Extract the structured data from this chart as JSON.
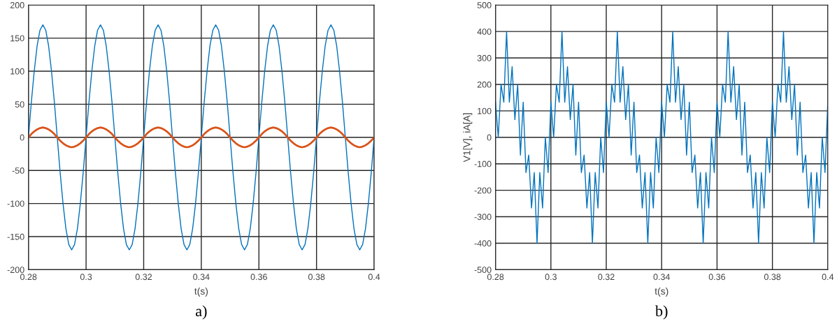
{
  "chart_data": [
    {
      "type": "line",
      "xlabel": "t(s)",
      "annotations": [
        "a)"
      ],
      "x": [
        0.28,
        0.281,
        0.282,
        0.283,
        0.284,
        0.285,
        0.286,
        0.287,
        0.288,
        0.289,
        0.29,
        0.291,
        0.292,
        0.293,
        0.294,
        0.295,
        0.296,
        0.297,
        0.298,
        0.299,
        0.3,
        0.301,
        0.302,
        0.303,
        0.304,
        0.305,
        0.306,
        0.307,
        0.308,
        0.309,
        0.31,
        0.311,
        0.312,
        0.313,
        0.314,
        0.315,
        0.316,
        0.317,
        0.318,
        0.319,
        0.32,
        0.321,
        0.322,
        0.323,
        0.324,
        0.325,
        0.326,
        0.327,
        0.328,
        0.329,
        0.33,
        0.331,
        0.332,
        0.333,
        0.334,
        0.335,
        0.336,
        0.337,
        0.338,
        0.339,
        0.34,
        0.341,
        0.342,
        0.343,
        0.344,
        0.345,
        0.346,
        0.347,
        0.348,
        0.349,
        0.35,
        0.351,
        0.352,
        0.353,
        0.354,
        0.355,
        0.356,
        0.357,
        0.358,
        0.359,
        0.36,
        0.361,
        0.362,
        0.363,
        0.364,
        0.365,
        0.366,
        0.367,
        0.368,
        0.369,
        0.37,
        0.371,
        0.372,
        0.373,
        0.374,
        0.375,
        0.376,
        0.377,
        0.378,
        0.379,
        0.38,
        0.381,
        0.382,
        0.383,
        0.384,
        0.385,
        0.386,
        0.387,
        0.388,
        0.389,
        0.39,
        0.391,
        0.392,
        0.393,
        0.394,
        0.395,
        0.396,
        0.397,
        0.398,
        0.399,
        0.4
      ],
      "series": [
        {
          "color": "#0072bd",
          "values": [
            0,
            53,
            100,
            138,
            162,
            170,
            162,
            138,
            100,
            53,
            0,
            -53,
            -100,
            -138,
            -162,
            -170,
            -162,
            -138,
            -100,
            -53,
            0,
            53,
            100,
            138,
            162,
            170,
            162,
            138,
            100,
            53,
            0,
            -53,
            -100,
            -138,
            -162,
            -170,
            -162,
            -138,
            -100,
            -53,
            0,
            53,
            100,
            138,
            162,
            170,
            162,
            138,
            100,
            53,
            0,
            -53,
            -100,
            -138,
            -162,
            -170,
            -162,
            -138,
            -100,
            -53,
            0,
            53,
            100,
            138,
            162,
            170,
            162,
            138,
            100,
            53,
            0,
            -53,
            -100,
            -138,
            -162,
            -170,
            -162,
            -138,
            -100,
            -53,
            0,
            53,
            100,
            138,
            162,
            170,
            162,
            138,
            100,
            53,
            0,
            -53,
            -100,
            -138,
            -162,
            -170,
            -162,
            -138,
            -100,
            -53,
            0,
            53,
            100,
            138,
            162,
            170,
            162,
            138,
            100,
            53,
            0,
            -53,
            -100,
            -138,
            -162,
            -170,
            -162,
            -138,
            -100,
            -53,
            0
          ]
        },
        {
          "color": "#d95319",
          "values": [
            0,
            5,
            9,
            12,
            14,
            15,
            14,
            12,
            9,
            5,
            0,
            -5,
            -9,
            -12,
            -14,
            -15,
            -14,
            -12,
            -9,
            -5,
            0,
            5,
            9,
            12,
            14,
            15,
            14,
            12,
            9,
            5,
            0,
            -5,
            -9,
            -12,
            -14,
            -15,
            -14,
            -12,
            -9,
            -5,
            0,
            5,
            9,
            12,
            14,
            15,
            14,
            12,
            9,
            5,
            0,
            -5,
            -9,
            -12,
            -14,
            -15,
            -14,
            -12,
            -9,
            -5,
            0,
            5,
            9,
            12,
            14,
            15,
            14,
            12,
            9,
            5,
            0,
            -5,
            -9,
            -12,
            -14,
            -15,
            -14,
            -12,
            -9,
            -5,
            0,
            5,
            9,
            12,
            14,
            15,
            14,
            12,
            9,
            5,
            0,
            -5,
            -9,
            -12,
            -14,
            -15,
            -14,
            -12,
            -9,
            -5,
            0,
            5,
            9,
            12,
            14,
            15,
            14,
            12,
            9,
            5,
            0,
            -5,
            -9,
            -12,
            -14,
            -15,
            -14,
            -12,
            -9,
            -5,
            0
          ]
        }
      ],
      "xlim": [
        0.28,
        0.4
      ],
      "xticks": [
        0.28,
        0.3,
        0.32,
        0.34,
        0.36,
        0.38,
        0.4
      ],
      "ylim": [
        -200,
        200
      ],
      "yticks": [
        -200,
        -150,
        -100,
        -50,
        0,
        50,
        100,
        150,
        200
      ],
      "grid": true
    },
    {
      "type": "line",
      "xlabel": "t(s)",
      "ylabel": "V1[V], iA[A]",
      "annotations": [
        "b)"
      ],
      "x": [
        0.28,
        0.281,
        0.282,
        0.283,
        0.284,
        0.285,
        0.286,
        0.287,
        0.288,
        0.289,
        0.29,
        0.291,
        0.292,
        0.293,
        0.294,
        0.295,
        0.296,
        0.297,
        0.298,
        0.299,
        0.3,
        0.301,
        0.302,
        0.303,
        0.304,
        0.305,
        0.306,
        0.307,
        0.308,
        0.309,
        0.31,
        0.311,
        0.312,
        0.313,
        0.314,
        0.315,
        0.316,
        0.317,
        0.318,
        0.319,
        0.32,
        0.321,
        0.322,
        0.323,
        0.324,
        0.325,
        0.326,
        0.327,
        0.328,
        0.329,
        0.33,
        0.331,
        0.332,
        0.333,
        0.334,
        0.335,
        0.336,
        0.337,
        0.338,
        0.339,
        0.34,
        0.341,
        0.342,
        0.343,
        0.344,
        0.345,
        0.346,
        0.347,
        0.348,
        0.349,
        0.35,
        0.351,
        0.352,
        0.353,
        0.354,
        0.355,
        0.356,
        0.357,
        0.358,
        0.359,
        0.36,
        0.361,
        0.362,
        0.363,
        0.364,
        0.365,
        0.366,
        0.367,
        0.368,
        0.369,
        0.37,
        0.371,
        0.372,
        0.373,
        0.374,
        0.375,
        0.376,
        0.377,
        0.378,
        0.379,
        0.38,
        0.381,
        0.382,
        0.383,
        0.384,
        0.385,
        0.386,
        0.387,
        0.388,
        0.389,
        0.39,
        0.391,
        0.392,
        0.393,
        0.394,
        0.395,
        0.396,
        0.397,
        0.398,
        0.399,
        0.4
      ],
      "series": [
        {
          "color": "#0072bd",
          "values": [
            133,
            0,
            200,
            133,
            400,
            133,
            267,
            67,
            200,
            -67,
            133,
            -133,
            -67,
            -267,
            -133,
            -400,
            -133,
            -267,
            0,
            -133,
            133,
            0,
            200,
            133,
            400,
            133,
            267,
            67,
            200,
            -67,
            133,
            -133,
            -67,
            -267,
            -133,
            -400,
            -133,
            -267,
            0,
            -133,
            133,
            0,
            200,
            133,
            400,
            133,
            267,
            67,
            200,
            -67,
            133,
            -133,
            -67,
            -267,
            -133,
            -400,
            -133,
            -267,
            0,
            -133,
            133,
            0,
            200,
            133,
            400,
            133,
            267,
            67,
            200,
            -67,
            133,
            -133,
            -67,
            -267,
            -133,
            -400,
            -133,
            -267,
            0,
            -133,
            133,
            0,
            200,
            133,
            400,
            133,
            267,
            67,
            200,
            -67,
            133,
            -133,
            -67,
            -267,
            -133,
            -400,
            -133,
            -267,
            0,
            -133,
            133,
            0,
            200,
            133,
            400,
            133,
            267,
            67,
            200,
            -67,
            133,
            -133,
            -67,
            -267,
            -133,
            -400,
            -133,
            -267,
            0,
            -133,
            133
          ]
        }
      ],
      "xlim": [
        0.28,
        0.4
      ],
      "xticks": [
        0.28,
        0.3,
        0.32,
        0.34,
        0.36,
        0.38,
        0.4
      ],
      "ylim": [
        -500,
        500
      ],
      "yticks": [
        -500,
        -400,
        -300,
        -200,
        -100,
        0,
        100,
        200,
        300,
        400,
        500
      ],
      "grid": true
    }
  ]
}
